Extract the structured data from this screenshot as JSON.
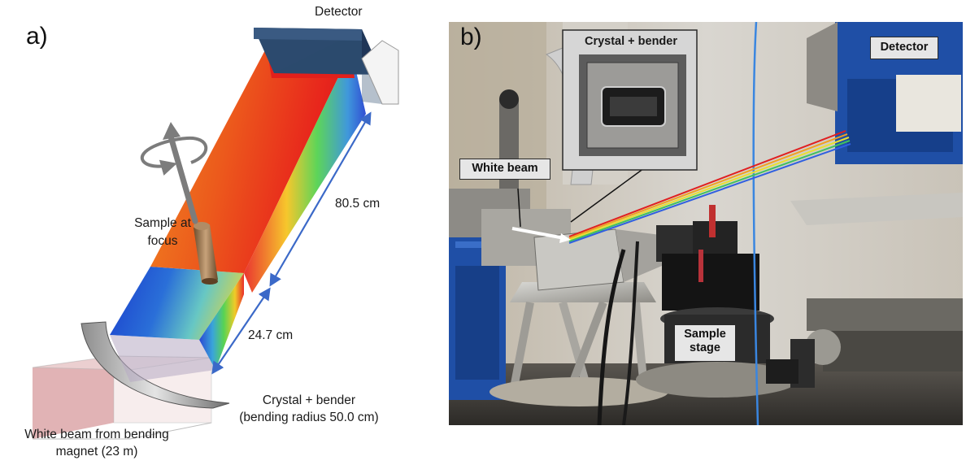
{
  "panel_a": {
    "panel_label": "a)",
    "detector_label": "Detector",
    "sample_label_line1": "Sample at",
    "sample_label_line2": "focus",
    "distance_upper": "80.5 cm",
    "distance_lower": "24.7 cm",
    "crystal_label_line1": "Crystal + bender",
    "crystal_label_line2": "(bending radius  50.0 cm)",
    "beam_label_line1": "White beam from bending",
    "beam_label_line2": "magnet (23 m)"
  },
  "panel_b": {
    "panel_label": "b)",
    "crystal_box_label": "Crystal + bender",
    "white_beam_label": "White beam",
    "detector_label": "Detector",
    "sample_stage_line1": "Sample",
    "sample_stage_line2": "stage"
  },
  "colors": {
    "beam_red": "#e8231e",
    "beam_orange": "#f07d20",
    "beam_blue": "#1f3fd0",
    "detector_navy": "#2c4a6e",
    "arrow_blue": "#3b69c8",
    "photo_blue": "#1f4fa6"
  }
}
